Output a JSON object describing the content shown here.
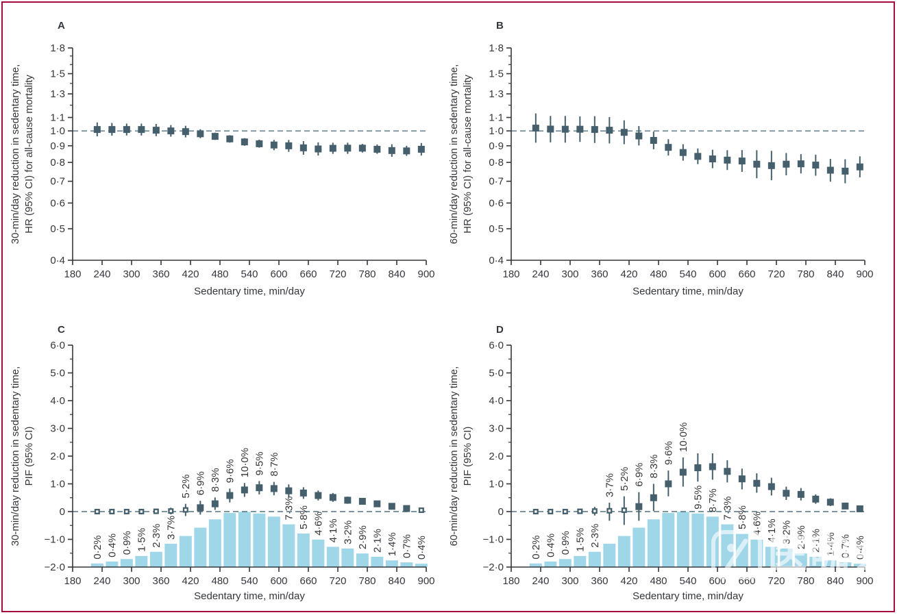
{
  "figure": {
    "border_color": "#A6093D",
    "background": "#ffffff"
  },
  "watermark": {
    "cn": "医咖会",
    "en": "mediecogroup"
  },
  "colors": {
    "marker": "#45606C",
    "bar": "#A0D7E8",
    "dashed_line": "#51707E",
    "axis_text": "#33363B"
  },
  "shared": {
    "x_label": "Sedentary time, min/day",
    "x_tick_labels": [
      "180",
      "240",
      "300",
      "360",
      "420",
      "480",
      "540",
      "600",
      "660",
      "720",
      "780",
      "840",
      "900"
    ],
    "x_tick_values": [
      180,
      240,
      300,
      360,
      420,
      480,
      540,
      600,
      660,
      720,
      780,
      840,
      900
    ],
    "x_range": [
      180,
      900
    ]
  },
  "chart_data": [
    {
      "id": "A",
      "letter": "A",
      "type": "scatter-errorbar",
      "kind": "hr",
      "scale": "log",
      "ylabel_line1": "30-min/day reduction in sedentary time,",
      "ylabel_line2": "HR (95% CI) for all-cause mortality",
      "xlabel": "Sedentary time, min/day",
      "y_tick_labels": [
        "1·8",
        "1·5",
        "1·3",
        "1·1",
        "1·0",
        "0·9",
        "0·8",
        "0·7",
        "0·6",
        "0·5",
        "0·4"
      ],
      "y_tick_values": [
        1.8,
        1.5,
        1.3,
        1.1,
        1.0,
        0.9,
        0.8,
        0.7,
        0.6,
        0.5,
        0.4
      ],
      "y_minor_ticks": [
        1.2,
        1.4,
        1.6,
        1.7
      ],
      "ylim": [
        0.4,
        1.8
      ],
      "ref_value": 1.0,
      "x": [
        230,
        260,
        290,
        320,
        350,
        380,
        410,
        440,
        470,
        500,
        530,
        560,
        590,
        620,
        650,
        680,
        710,
        740,
        770,
        800,
        830,
        860,
        890
      ],
      "values": [
        1.01,
        1.01,
        1.01,
        1.01,
        1.005,
        1.0,
        0.995,
        0.98,
        0.962,
        0.945,
        0.925,
        0.913,
        0.905,
        0.9,
        0.887,
        0.88,
        0.884,
        0.885,
        0.885,
        0.878,
        0.87,
        0.868,
        0.878
      ],
      "ci_low": [
        0.962,
        0.967,
        0.968,
        0.968,
        0.963,
        0.96,
        0.955,
        0.95,
        0.938,
        0.92,
        0.9,
        0.888,
        0.872,
        0.862,
        0.845,
        0.84,
        0.85,
        0.85,
        0.858,
        0.85,
        0.832,
        0.838,
        0.84
      ],
      "ci_high": [
        1.062,
        1.058,
        1.053,
        1.053,
        1.05,
        1.042,
        1.037,
        1.012,
        0.988,
        0.97,
        0.95,
        0.94,
        0.938,
        0.938,
        0.93,
        0.922,
        0.92,
        0.92,
        0.912,
        0.908,
        0.91,
        0.9,
        0.918
      ]
    },
    {
      "id": "B",
      "letter": "B",
      "type": "scatter-errorbar",
      "kind": "hr",
      "scale": "log",
      "ylabel_line1": "60-min/day reduction in sedentary time,",
      "ylabel_line2": "HR (95% CI) for all-cause mortality",
      "xlabel": "Sedentary time, min/day",
      "y_tick_labels": [
        "1·8",
        "1·5",
        "1·3",
        "1·1",
        "1·0",
        "0·9",
        "0·8",
        "0·7",
        "0·6",
        "0·5",
        "0·4"
      ],
      "y_tick_values": [
        1.8,
        1.5,
        1.3,
        1.1,
        1.0,
        0.9,
        0.8,
        0.7,
        0.6,
        0.5,
        0.4
      ],
      "y_minor_ticks": [
        1.2,
        1.4,
        1.6,
        1.7
      ],
      "ylim": [
        0.4,
        1.8
      ],
      "ref_value": 1.0,
      "x": [
        230,
        260,
        290,
        320,
        350,
        380,
        410,
        440,
        470,
        500,
        530,
        560,
        590,
        620,
        650,
        680,
        710,
        740,
        770,
        800,
        830,
        860,
        890
      ],
      "values": [
        1.02,
        1.013,
        1.012,
        1.012,
        1.01,
        1.005,
        0.99,
        0.965,
        0.935,
        0.89,
        0.858,
        0.835,
        0.82,
        0.813,
        0.808,
        0.79,
        0.782,
        0.79,
        0.792,
        0.785,
        0.757,
        0.752,
        0.775
      ],
      "ci_low": [
        0.92,
        0.922,
        0.92,
        0.925,
        0.918,
        0.915,
        0.91,
        0.902,
        0.878,
        0.84,
        0.81,
        0.79,
        0.768,
        0.758,
        0.748,
        0.715,
        0.705,
        0.73,
        0.74,
        0.728,
        0.698,
        0.69,
        0.72
      ],
      "ci_high": [
        1.132,
        1.112,
        1.112,
        1.108,
        1.11,
        1.103,
        1.078,
        1.035,
        0.995,
        0.943,
        0.91,
        0.883,
        0.875,
        0.872,
        0.873,
        0.872,
        0.868,
        0.855,
        0.848,
        0.845,
        0.82,
        0.818,
        0.835
      ]
    },
    {
      "id": "C",
      "letter": "C",
      "type": "bar+scatter-errorbar",
      "kind": "pif",
      "scale": "linear",
      "ylabel_line1": "30-min/day reduction in sedentary time,",
      "ylabel_line2": "PIF (95% CI)",
      "xlabel": "Sedentary time, min/day",
      "y_tick_labels": [
        "6·0",
        "5·0",
        "4·0",
        "3·0",
        "2·0",
        "1·0",
        "0",
        "−1·0",
        "−2·0"
      ],
      "y_tick_values": [
        6,
        5,
        4,
        3,
        2,
        1,
        0,
        -1,
        -2
      ],
      "y_minor_ticks": [
        5.5,
        4.5,
        3.5,
        2.5,
        1.5,
        0.5,
        -0.5,
        -1.5
      ],
      "ylim": [
        -2,
        6
      ],
      "ref_value": 0,
      "x": [
        230,
        260,
        290,
        320,
        350,
        380,
        410,
        440,
        470,
        500,
        530,
        560,
        590,
        620,
        650,
        680,
        710,
        740,
        770,
        800,
        830,
        860,
        890
      ],
      "values": [
        0.0,
        0.0,
        0.0,
        0.0,
        0.01,
        0.02,
        0.06,
        0.14,
        0.28,
        0.58,
        0.78,
        0.86,
        0.83,
        0.75,
        0.67,
        0.58,
        0.51,
        0.41,
        0.37,
        0.28,
        0.19,
        0.11,
        0.05
      ],
      "ci_low": [
        0.0,
        0.0,
        -0.01,
        -0.02,
        -0.05,
        -0.1,
        -0.16,
        -0.11,
        0.06,
        0.33,
        0.53,
        0.62,
        0.59,
        0.52,
        0.46,
        0.4,
        0.35,
        0.28,
        0.26,
        0.19,
        0.12,
        0.06,
        0.02
      ],
      "ci_high": [
        0.0,
        0.01,
        0.01,
        0.03,
        0.06,
        0.14,
        0.28,
        0.39,
        0.51,
        0.83,
        1.03,
        1.1,
        1.07,
        0.98,
        0.88,
        0.76,
        0.67,
        0.54,
        0.48,
        0.37,
        0.26,
        0.16,
        0.08
      ],
      "bar_top": [
        -1.87,
        -1.8,
        -1.71,
        -1.6,
        -1.45,
        -1.16,
        -0.88,
        -0.58,
        -0.28,
        -0.05,
        -0.01,
        -0.07,
        -0.18,
        -0.46,
        -0.79,
        -1.01,
        -1.27,
        -1.33,
        -1.51,
        -1.63,
        -1.76,
        -1.83,
        -1.88
      ],
      "bar_base": -2,
      "point_labels": [
        "0·2%",
        "0·4%",
        "0·9%",
        "1·5%",
        "2·3%",
        "3·7%",
        "5·2%",
        "6·9%",
        "8·3%",
        "9·6%",
        "10·0%",
        "9·5%",
        "8·7%",
        "7·3%",
        "5·8%",
        "4·6%",
        "4·1%",
        "3·2%",
        "2·9%",
        "2·1%",
        "1·4%",
        "0·7%",
        "0·4%"
      ],
      "labels_above_indices": [
        6,
        7,
        8,
        9,
        10,
        11,
        12
      ]
    },
    {
      "id": "D",
      "letter": "D",
      "type": "bar+scatter-errorbar",
      "kind": "pif",
      "scale": "linear",
      "ylabel_line1": "60-min/day reduction in sedentary time,",
      "ylabel_line2": "PIF (95% CI)",
      "xlabel": "Sedentary time, min/day",
      "y_tick_labels": [
        "6·0",
        "5·0",
        "4·0",
        "3·0",
        "2·0",
        "1·0",
        "0",
        "−1·0",
        "−2·0"
      ],
      "y_tick_values": [
        6,
        5,
        4,
        3,
        2,
        1,
        0,
        -1,
        -2
      ],
      "y_minor_ticks": [
        5.5,
        4.5,
        3.5,
        2.5,
        1.5,
        0.5,
        -0.5,
        -1.5
      ],
      "ylim": [
        -2,
        6
      ],
      "ref_value": 0,
      "x": [
        230,
        260,
        290,
        320,
        350,
        380,
        410,
        440,
        470,
        500,
        530,
        560,
        590,
        620,
        650,
        680,
        710,
        740,
        770,
        800,
        830,
        860,
        890
      ],
      "values": [
        0.0,
        0.0,
        0.0,
        0.01,
        0.02,
        0.03,
        0.05,
        0.18,
        0.5,
        1.0,
        1.42,
        1.58,
        1.62,
        1.45,
        1.18,
        1.02,
        0.9,
        0.66,
        0.62,
        0.45,
        0.34,
        0.2,
        0.1
      ],
      "ci_low": [
        0.0,
        -0.01,
        -0.02,
        -0.05,
        -0.14,
        -0.33,
        -0.48,
        -0.33,
        0.02,
        0.55,
        0.9,
        1.08,
        1.15,
        1.05,
        0.8,
        0.68,
        0.58,
        0.42,
        0.4,
        0.28,
        0.2,
        0.1,
        0.03
      ],
      "ci_high": [
        0.0,
        0.01,
        0.02,
        0.06,
        0.17,
        0.32,
        0.55,
        0.7,
        1.0,
        1.48,
        1.95,
        2.1,
        2.1,
        1.85,
        1.55,
        1.38,
        1.22,
        0.9,
        0.85,
        0.62,
        0.48,
        0.31,
        0.17
      ],
      "bar_top": [
        -1.87,
        -1.8,
        -1.71,
        -1.6,
        -1.45,
        -1.16,
        -0.88,
        -0.58,
        -0.28,
        -0.05,
        -0.01,
        -0.07,
        -0.18,
        -0.46,
        -0.79,
        -1.01,
        -1.27,
        -1.33,
        -1.51,
        -1.63,
        -1.76,
        -1.83,
        -1.88
      ],
      "bar_base": -2,
      "point_labels": [
        "0·2%",
        "0·4%",
        "0·9%",
        "1·5%",
        "2·3%",
        "3·7%",
        "5·2%",
        "6·9%",
        "8·3%",
        "9·6%",
        "10·0%",
        "9·5%",
        "8·7%",
        "7·3%",
        "5·8%",
        "4·6%",
        "4·1%",
        "3·2%",
        "2·9%",
        "2·1%",
        "1·4%",
        "0·7%",
        "0·4%"
      ],
      "labels_above_indices": [
        5,
        6,
        7,
        8,
        9,
        10
      ]
    }
  ]
}
